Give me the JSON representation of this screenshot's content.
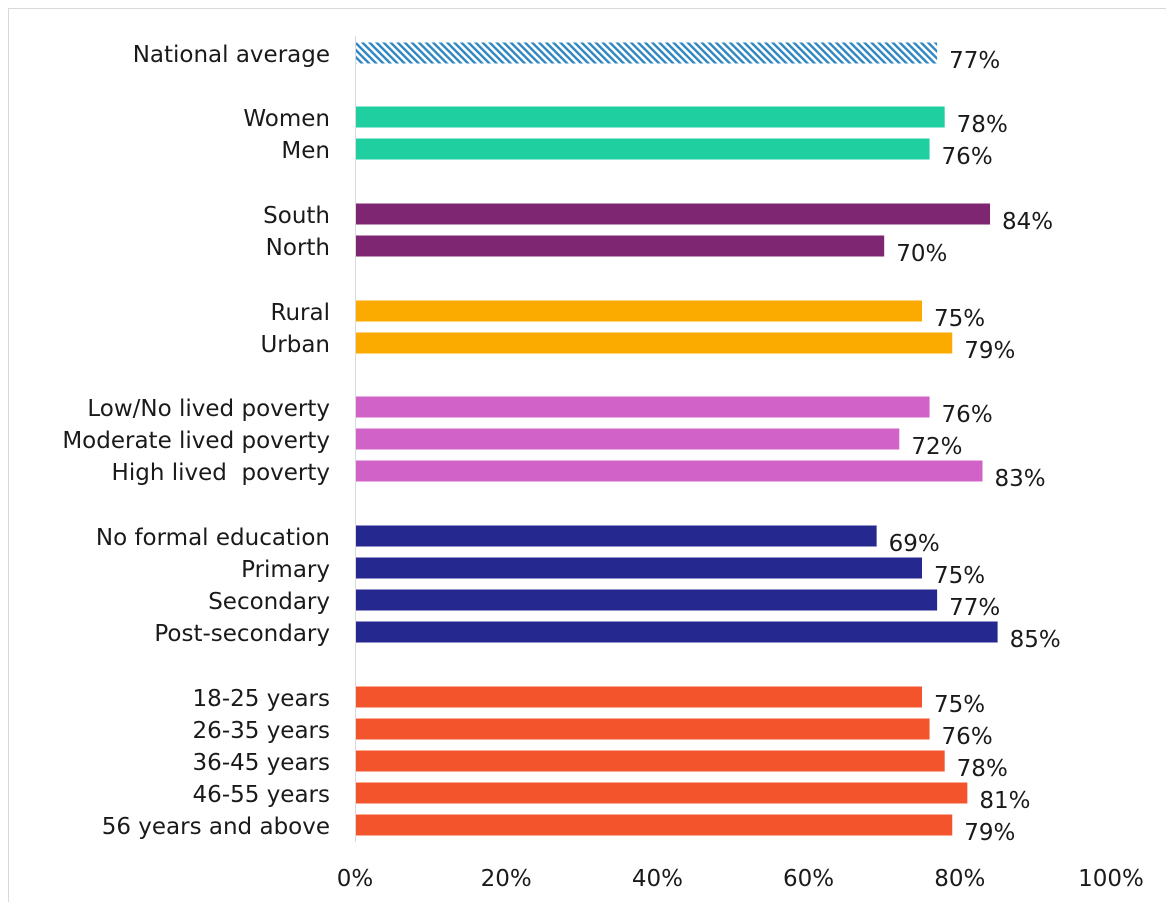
{
  "chart_data": {
    "type": "bar",
    "orientation": "horizontal",
    "title": "",
    "xlabel": "",
    "ylabel": "",
    "xlim": [
      0,
      100
    ],
    "x_ticks": [
      "0%",
      "20%",
      "40%",
      "60%",
      "80%",
      "100%"
    ],
    "gridlines": false,
    "legend": "none",
    "value_suffix": "%",
    "categories": [
      "National average",
      "Women",
      "Men",
      "South",
      "North",
      "Rural",
      "Urban",
      "Low/No lived poverty",
      "Moderate lived poverty",
      "High lived  poverty",
      "No formal education",
      "Primary",
      "Secondary",
      "Post-secondary",
      "18-25 years",
      "26-35 years",
      "36-45 years",
      "46-55 years",
      "56 years and above"
    ],
    "groups": [
      {
        "color": "#2E86C1",
        "pattern": "hatched",
        "items": [
          {
            "label": "National average",
            "value": 77
          }
        ]
      },
      {
        "color": "#20CFA0",
        "pattern": "solid",
        "items": [
          {
            "label": "Women",
            "value": 78
          },
          {
            "label": "Men",
            "value": 76
          }
        ]
      },
      {
        "color": "#7E2672",
        "pattern": "solid",
        "items": [
          {
            "label": "South",
            "value": 84
          },
          {
            "label": "North",
            "value": 70
          }
        ]
      },
      {
        "color": "#FBAA00",
        "pattern": "solid",
        "items": [
          {
            "label": "Rural",
            "value": 75
          },
          {
            "label": "Urban",
            "value": 79
          }
        ]
      },
      {
        "color": "#D062C8",
        "pattern": "solid",
        "items": [
          {
            "label": "Low/No lived poverty",
            "value": 76
          },
          {
            "label": "Moderate lived poverty",
            "value": 72
          },
          {
            "label": "High lived  poverty",
            "value": 83
          }
        ]
      },
      {
        "color": "#25288F",
        "pattern": "solid",
        "items": [
          {
            "label": "No formal education",
            "value": 69
          },
          {
            "label": "Primary",
            "value": 75
          },
          {
            "label": "Secondary",
            "value": 77
          },
          {
            "label": "Post-secondary",
            "value": 85
          }
        ]
      },
      {
        "color": "#F4542C",
        "pattern": "solid",
        "items": [
          {
            "label": "18-25 years",
            "value": 75
          },
          {
            "label": "26-35 years",
            "value": 76
          },
          {
            "label": "36-45 years",
            "value": 78
          },
          {
            "label": "46-55 years",
            "value": 81
          },
          {
            "label": "56 years and above",
            "value": 79
          }
        ]
      }
    ]
  }
}
